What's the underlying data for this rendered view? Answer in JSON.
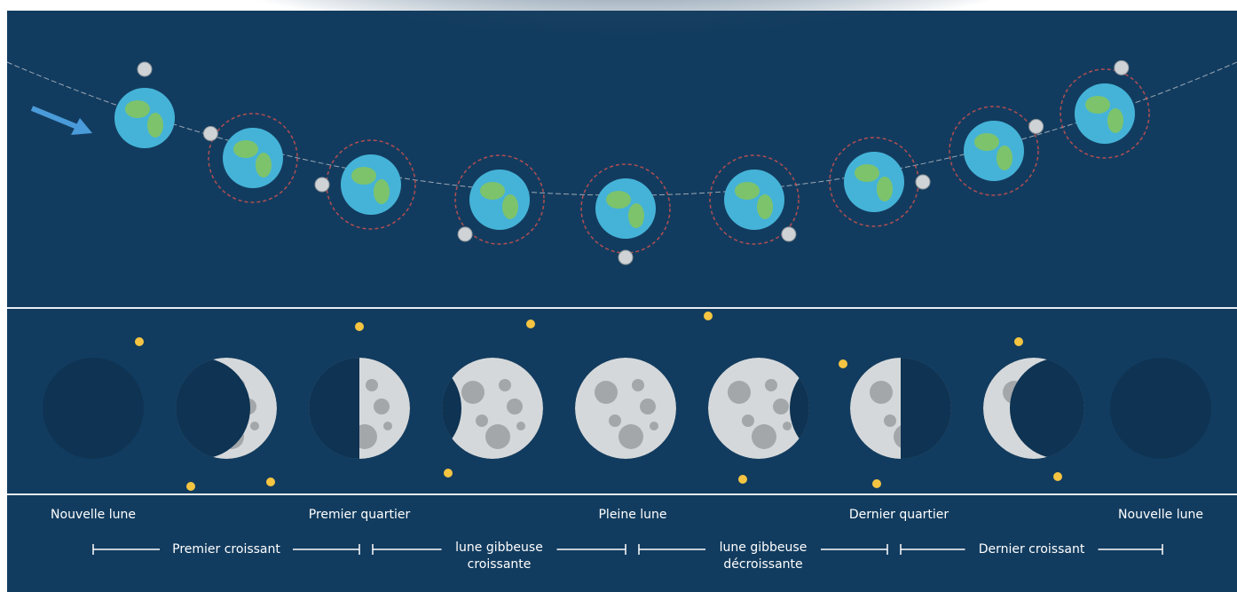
{
  "phases": [
    {
      "label": "Nouvelle lune"
    },
    {
      "label": "Premier quartier"
    },
    {
      "label": "Pleine lune"
    },
    {
      "label": "Dernier quartier"
    },
    {
      "label": "Nouvelle lune"
    }
  ],
  "intervals": [
    {
      "lines": [
        "Premier croissant"
      ]
    },
    {
      "lines": [
        "lune gibbeuse",
        "croissante"
      ]
    },
    {
      "lines": [
        "lune gibbeuse",
        "décroissante"
      ]
    },
    {
      "lines": [
        "Dernier croissant"
      ]
    }
  ]
}
